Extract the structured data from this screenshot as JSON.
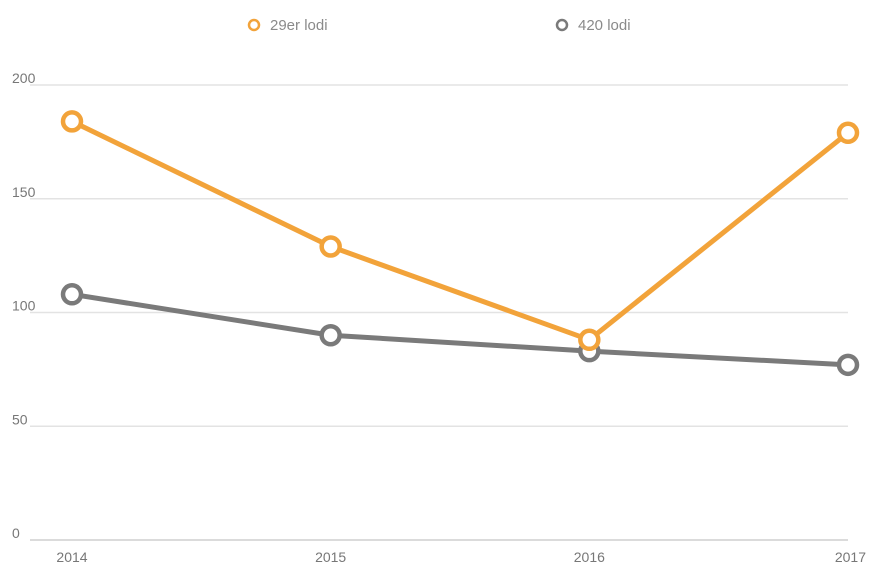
{
  "chart_data": {
    "type": "line",
    "categories": [
      "2014",
      "2015",
      "2016",
      "2017"
    ],
    "series": [
      {
        "name": "29er lodi",
        "color": "#f2a33a",
        "values": [
          184,
          129,
          88,
          179
        ]
      },
      {
        "name": "420 lodi",
        "color": "#7a7a7a",
        "values": [
          108,
          90,
          83,
          77
        ]
      }
    ],
    "title": "",
    "xlabel": "",
    "ylabel": "",
    "ylim": [
      0,
      200
    ],
    "yticks": [
      "0",
      "50",
      "100",
      "150",
      "200"
    ],
    "grid": true,
    "legend_position": "top-center",
    "marker": "hollow-circle"
  }
}
